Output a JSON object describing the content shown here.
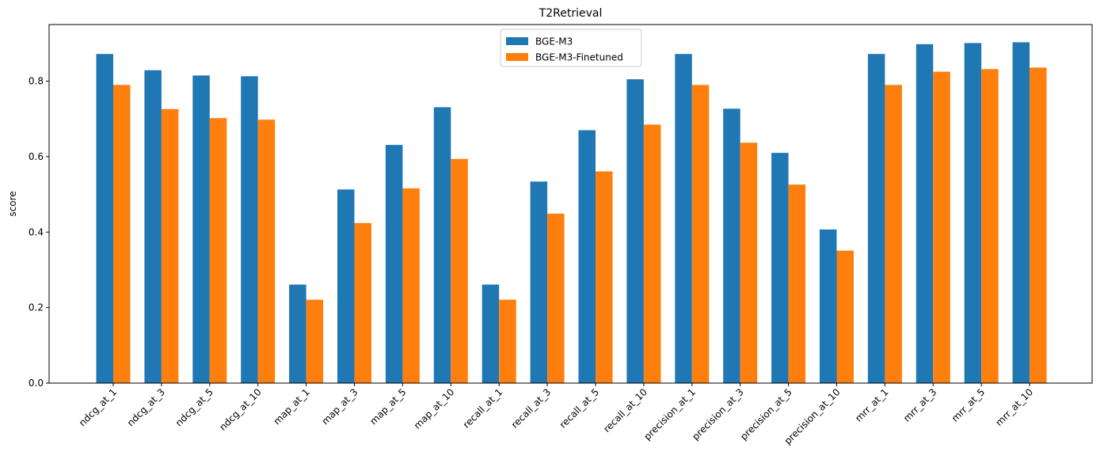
{
  "chart_data": {
    "type": "bar",
    "title": "T2Retrieval",
    "xlabel": "",
    "ylabel": "score",
    "ylim": [
      0,
      0.95
    ],
    "yticks": [
      "0.0",
      "0.2",
      "0.4",
      "0.6",
      "0.8"
    ],
    "ytick_values": [
      0.0,
      0.2,
      0.4,
      0.6,
      0.8
    ],
    "grid": false,
    "legend_position": "top-center",
    "categories": [
      "ndcg_at_1",
      "ndcg_at_3",
      "ndcg_at_5",
      "ndcg_at_10",
      "map_at_1",
      "map_at_3",
      "map_at_5",
      "map_at_10",
      "recall_at_1",
      "recall_at_3",
      "recall_at_5",
      "recall_at_10",
      "precision_at_1",
      "precision_at_3",
      "precision_at_5",
      "precision_at_10",
      "mrr_at_1",
      "mrr_at_3",
      "mrr_at_5",
      "mrr_at_10"
    ],
    "series": [
      {
        "name": "BGE-M3",
        "color": "#1f77b4",
        "values": [
          0.872,
          0.829,
          0.815,
          0.813,
          0.261,
          0.513,
          0.631,
          0.731,
          0.261,
          0.534,
          0.67,
          0.805,
          0.872,
          0.727,
          0.61,
          0.407,
          0.872,
          0.898,
          0.901,
          0.903
        ]
      },
      {
        "name": "BGE-M3-Finetuned",
        "color": "#ff7f0e",
        "values": [
          0.79,
          0.726,
          0.702,
          0.698,
          0.221,
          0.424,
          0.516,
          0.594,
          0.221,
          0.449,
          0.561,
          0.685,
          0.79,
          0.637,
          0.526,
          0.351,
          0.79,
          0.825,
          0.832,
          0.836
        ]
      }
    ]
  }
}
